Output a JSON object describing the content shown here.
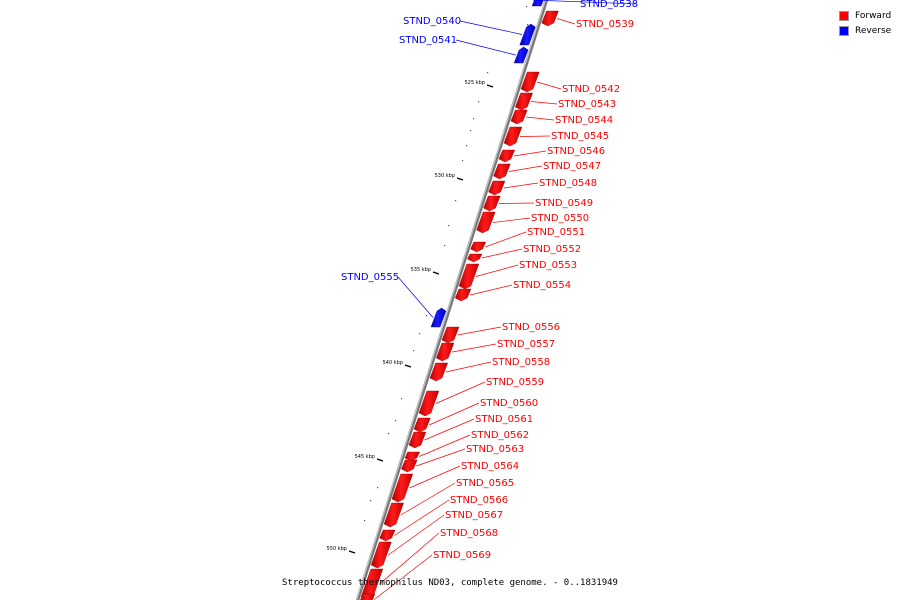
{
  "colors": {
    "forward": "#ff0000",
    "reverse": "#0000ff",
    "backbone": "#888888"
  },
  "legend": [
    {
      "label": "Forward",
      "color": "#ff0000"
    },
    {
      "label": "Reverse",
      "color": "#0000ff"
    }
  ],
  "caption": "Streptococcus thermophilus ND03, complete genome. - 0..1831949",
  "tick_labels": [
    "525 kbp",
    "530 kbp",
    "535 kbp",
    "540 kbp",
    "545 kbp",
    "550 kbp"
  ],
  "genes": [
    {
      "name": "STND_0538",
      "strand": "reverse"
    },
    {
      "name": "STND_0539",
      "strand": "forward"
    },
    {
      "name": "STND_0540",
      "strand": "reverse"
    },
    {
      "name": "STND_0541",
      "strand": "reverse"
    },
    {
      "name": "STND_0542",
      "strand": "forward"
    },
    {
      "name": "STND_0543",
      "strand": "forward"
    },
    {
      "name": "STND_0544",
      "strand": "forward"
    },
    {
      "name": "STND_0545",
      "strand": "forward"
    },
    {
      "name": "STND_0546",
      "strand": "forward"
    },
    {
      "name": "STND_0547",
      "strand": "forward"
    },
    {
      "name": "STND_0548",
      "strand": "forward"
    },
    {
      "name": "STND_0549",
      "strand": "forward"
    },
    {
      "name": "STND_0550",
      "strand": "forward"
    },
    {
      "name": "STND_0551",
      "strand": "forward"
    },
    {
      "name": "STND_0552",
      "strand": "forward"
    },
    {
      "name": "STND_0553",
      "strand": "forward"
    },
    {
      "name": "STND_0554",
      "strand": "forward"
    },
    {
      "name": "STND_0555",
      "strand": "reverse"
    },
    {
      "name": "STND_0556",
      "strand": "forward"
    },
    {
      "name": "STND_0557",
      "strand": "forward"
    },
    {
      "name": "STND_0558",
      "strand": "forward"
    },
    {
      "name": "STND_0559",
      "strand": "forward"
    },
    {
      "name": "STND_0560",
      "strand": "forward"
    },
    {
      "name": "STND_0561",
      "strand": "forward"
    },
    {
      "name": "STND_0562",
      "strand": "forward"
    },
    {
      "name": "STND_0563",
      "strand": "forward"
    },
    {
      "name": "STND_0564",
      "strand": "forward"
    },
    {
      "name": "STND_0565",
      "strand": "forward"
    },
    {
      "name": "STND_0566",
      "strand": "forward"
    },
    {
      "name": "STND_0567",
      "strand": "forward"
    },
    {
      "name": "STND_0568",
      "strand": "forward"
    },
    {
      "name": "STND_0569",
      "strand": "forward"
    }
  ]
}
